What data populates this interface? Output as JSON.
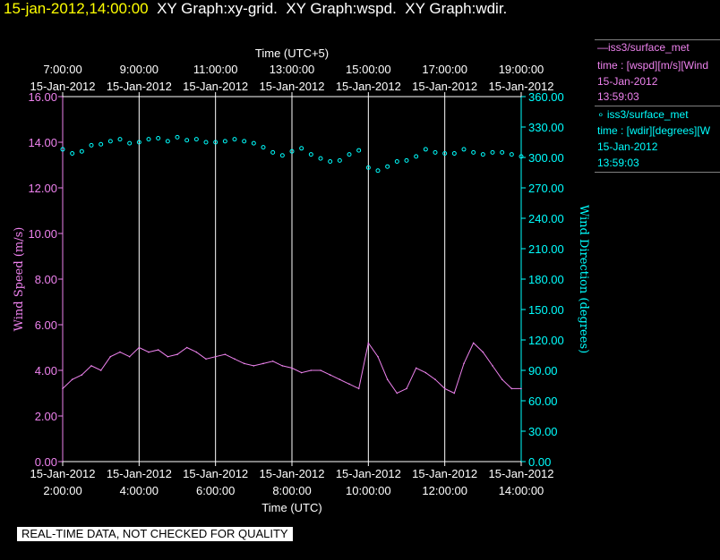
{
  "header": {
    "timestamp": "15-jan-2012,14:00:00",
    "graphs": "  XY Graph:xy-grid.  XY Graph:wspd.  XY Graph:wdir."
  },
  "legend": {
    "wspd": {
      "line1": "—iss3/surface_met",
      "line2": "time : [wspd][m/s][Wind",
      "line3": "15-Jan-2012",
      "line4": "13:59:03"
    },
    "wdir": {
      "line1": "∘ iss3/surface_met",
      "line2": "time : [wdir][degrees][W",
      "line3": "15-Jan-2012",
      "line4": "13:59:03"
    }
  },
  "notice": "REAL-TIME DATA, NOT CHECKED FOR QUALITY",
  "colors": {
    "wspd": "#ee82ee",
    "wdir": "#00ffff",
    "axis": "#ffffff",
    "timestamp": "#ffff00"
  },
  "chart_data": {
    "type": "line",
    "title": "",
    "x_top_label": "Time (UTC+5)",
    "x_top_ticks": [
      [
        "7:00:00",
        "15-Jan-2012"
      ],
      [
        "9:00:00",
        "15-Jan-2012"
      ],
      [
        "11:00:00",
        "15-Jan-2012"
      ],
      [
        "13:00:00",
        "15-Jan-2012"
      ],
      [
        "15:00:00",
        "15-Jan-2012"
      ],
      [
        "17:00:00",
        "15-Jan-2012"
      ],
      [
        "19:00:00",
        "15-Jan-2012"
      ]
    ],
    "x_bottom_label": "Time (UTC)",
    "x_bottom_ticks": [
      [
        "15-Jan-2012",
        "2:00:00"
      ],
      [
        "15-Jan-2012",
        "4:00:00"
      ],
      [
        "15-Jan-2012",
        "6:00:00"
      ],
      [
        "15-Jan-2012",
        "8:00:00"
      ],
      [
        "15-Jan-2012",
        "10:00:00"
      ],
      [
        "15-Jan-2012",
        "12:00:00"
      ],
      [
        "15-Jan-2012",
        "14:00:00"
      ]
    ],
    "x_tick_hours": [
      2,
      4,
      6,
      8,
      10,
      12,
      14
    ],
    "xlim_hours_utc": [
      2.0,
      14.0
    ],
    "ylabel": "Wind Speed (m/s)",
    "ylim": [
      0,
      16
    ],
    "y_ticks": [
      "0.00",
      "2.00",
      "4.00",
      "6.00",
      "8.00",
      "10.00",
      "12.00",
      "14.00",
      "16.00"
    ],
    "y2label": "Wind Direction (degrees)",
    "y2lim": [
      0,
      360
    ],
    "y2_ticks": [
      "0.00",
      "30.00",
      "60.00",
      "90.00",
      "120.00",
      "150.00",
      "180.00",
      "210.00",
      "240.00",
      "270.00",
      "300.00",
      "330.00",
      "360.00"
    ],
    "grid": "vertical",
    "series": [
      {
        "name": "iss3/surface_met wspd",
        "style": "line",
        "t_hours_utc": [
          2.0,
          2.25,
          2.5,
          2.75,
          3.0,
          3.25,
          3.5,
          3.75,
          4.0,
          4.25,
          4.5,
          4.75,
          5.0,
          5.25,
          5.5,
          5.75,
          6.0,
          6.25,
          6.5,
          6.75,
          7.0,
          7.25,
          7.5,
          7.75,
          8.0,
          8.25,
          8.5,
          8.75,
          9.0,
          9.25,
          9.5,
          9.75,
          10.0,
          10.25,
          10.5,
          10.75,
          11.0,
          11.25,
          11.5,
          11.75,
          12.0,
          12.25,
          12.5,
          12.75,
          13.0,
          13.25,
          13.5,
          13.75,
          14.0
        ],
        "values": [
          3.2,
          3.6,
          3.8,
          4.2,
          4.0,
          4.6,
          4.8,
          4.6,
          5.0,
          4.8,
          4.9,
          4.6,
          4.7,
          5.0,
          4.8,
          4.5,
          4.6,
          4.7,
          4.5,
          4.3,
          4.2,
          4.3,
          4.4,
          4.2,
          4.1,
          3.9,
          4.0,
          4.0,
          3.8,
          3.6,
          3.4,
          3.2,
          5.2,
          4.6,
          3.6,
          3.0,
          3.2,
          4.1,
          3.9,
          3.6,
          3.2,
          3.0,
          4.3,
          5.2,
          4.8,
          4.2,
          3.6,
          3.2,
          3.2
        ]
      },
      {
        "name": "iss3/surface_met wdir",
        "style": "points",
        "t_hours_utc": [
          2.0,
          2.25,
          2.5,
          2.75,
          3.0,
          3.25,
          3.5,
          3.75,
          4.0,
          4.25,
          4.5,
          4.75,
          5.0,
          5.25,
          5.5,
          5.75,
          6.0,
          6.25,
          6.5,
          6.75,
          7.0,
          7.25,
          7.5,
          7.75,
          8.0,
          8.25,
          8.5,
          8.75,
          9.0,
          9.25,
          9.5,
          9.75,
          10.0,
          10.25,
          10.5,
          10.75,
          11.0,
          11.25,
          11.5,
          11.75,
          12.0,
          12.25,
          12.5,
          12.75,
          13.0,
          13.25,
          13.5,
          13.75,
          14.0
        ],
        "values": [
          308,
          304,
          306,
          312,
          313,
          316,
          318,
          314,
          315,
          318,
          319,
          316,
          320,
          317,
          318,
          315,
          315,
          316,
          318,
          316,
          314,
          310,
          305,
          302,
          306,
          309,
          303,
          299,
          296,
          297,
          303,
          307,
          290,
          287,
          291,
          296,
          297,
          301,
          308,
          305,
          304,
          304,
          308,
          305,
          303,
          305,
          305,
          303,
          301
        ]
      }
    ]
  }
}
